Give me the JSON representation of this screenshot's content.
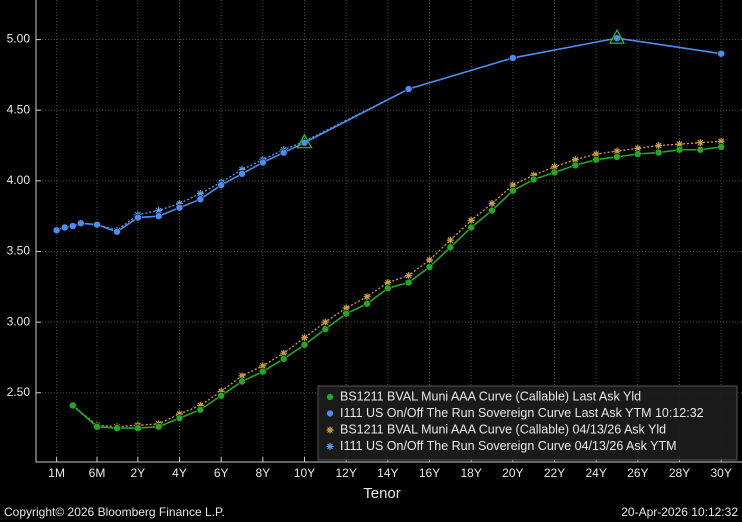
{
  "chart_data": {
    "type": "line",
    "x_label": "Tenor",
    "copyright": "Copyright© 2026 Bloomberg Finance L.P.",
    "timestamp": "20-Apr-2026 10:12:32",
    "xlim": [
      -0.13,
      31
    ],
    "xticks": [
      {
        "value": 0.083,
        "label": "1M"
      },
      {
        "value": 0.5,
        "label": "6M"
      },
      {
        "value": 2,
        "label": "2Y"
      },
      {
        "value": 4,
        "label": "4Y"
      },
      {
        "value": 6,
        "label": "6Y"
      },
      {
        "value": 8,
        "label": "8Y"
      },
      {
        "value": 10,
        "label": "10Y"
      },
      {
        "value": 12,
        "label": "12Y"
      },
      {
        "value": 14,
        "label": "14Y"
      },
      {
        "value": 16,
        "label": "16Y"
      },
      {
        "value": 18,
        "label": "18Y"
      },
      {
        "value": 20,
        "label": "20Y"
      },
      {
        "value": 22,
        "label": "22Y"
      },
      {
        "value": 24,
        "label": "24Y"
      },
      {
        "value": 26,
        "label": "26Y"
      },
      {
        "value": 28,
        "label": "28Y"
      },
      {
        "value": 30,
        "label": "30Y"
      }
    ],
    "ylim": [
      2.01,
      5.28
    ],
    "yticks": [
      {
        "value": 2.5,
        "label": "2.50"
      },
      {
        "value": 3,
        "label": "3.00"
      },
      {
        "value": 3.5,
        "label": "3.50"
      },
      {
        "value": 4,
        "label": "4.00"
      },
      {
        "value": 4.5,
        "label": "4.50"
      },
      {
        "value": 5,
        "label": "5.00"
      }
    ],
    "grid": true,
    "legend": "lower-right",
    "series": [
      {
        "name": "BS1211 BVAL Muni AAA Curve (Callable) Last Ask Yld",
        "color": "#22a822",
        "marker": "circle",
        "dotted": false,
        "x": [
          0.25,
          0.5,
          1,
          2,
          3,
          4,
          5,
          6,
          7,
          8,
          9,
          10,
          11,
          12,
          13,
          14,
          15,
          16,
          17,
          18,
          19,
          20,
          21,
          22,
          23,
          24,
          25,
          26,
          27,
          28,
          29,
          30
        ],
        "values": [
          2.41,
          2.26,
          2.25,
          2.25,
          2.26,
          2.32,
          2.38,
          2.48,
          2.58,
          2.65,
          2.74,
          2.84,
          2.95,
          3.06,
          3.13,
          3.24,
          3.28,
          3.39,
          3.53,
          3.67,
          3.79,
          3.93,
          4.01,
          4.06,
          4.11,
          4.15,
          4.17,
          4.19,
          4.2,
          4.22,
          4.22,
          4.24
        ]
      },
      {
        "name": "I111 US On/Off The Run Sovereign Curve Last Ask YTM 10:12:32",
        "color": "#4a8ff0",
        "marker": "circle",
        "dotted": false,
        "x": [
          0.083,
          0.167,
          0.25,
          0.333,
          0.5,
          1,
          2,
          3,
          4,
          5,
          6,
          7,
          8,
          9,
          10,
          15,
          20,
          25,
          30
        ],
        "values": [
          3.65,
          3.67,
          3.68,
          3.7,
          3.69,
          3.64,
          3.74,
          3.75,
          3.81,
          3.87,
          3.97,
          4.05,
          4.13,
          4.2,
          4.27,
          4.65,
          4.87,
          5.01,
          4.9
        ],
        "highlight_x": [
          10,
          25
        ],
        "highlight_color": "#22c822"
      },
      {
        "name": "BS1211 BVAL Muni AAA Curve (Callable) 04/13/26 Ask Yld",
        "color": "#c9a23a",
        "marker": "star",
        "dotted": true,
        "x": [
          0.25,
          0.5,
          1,
          2,
          3,
          4,
          5,
          6,
          7,
          8,
          9,
          10,
          11,
          12,
          13,
          14,
          15,
          16,
          17,
          18,
          19,
          20,
          21,
          22,
          23,
          24,
          25,
          26,
          27,
          28,
          29,
          30
        ],
        "values": [
          2.41,
          2.27,
          2.26,
          2.27,
          2.28,
          2.35,
          2.41,
          2.51,
          2.62,
          2.69,
          2.78,
          2.89,
          3.0,
          3.1,
          3.18,
          3.28,
          3.33,
          3.44,
          3.58,
          3.72,
          3.84,
          3.97,
          4.04,
          4.1,
          4.15,
          4.19,
          4.21,
          4.23,
          4.25,
          4.26,
          4.27,
          4.28
        ]
      },
      {
        "name": "I111 US On/Off The Run Sovereign Curve 04/13/26 Ask YTM",
        "color": "#5a9cf5",
        "marker": "star",
        "dotted": true,
        "x": [
          0.083,
          0.167,
          0.25,
          0.333,
          0.5,
          1,
          2,
          3,
          4,
          5,
          6,
          7,
          8,
          9,
          10,
          15,
          20,
          25,
          30
        ],
        "values": [
          3.65,
          3.67,
          3.68,
          3.7,
          3.69,
          3.65,
          3.76,
          3.79,
          3.84,
          3.91,
          3.99,
          4.08,
          4.15,
          4.22,
          4.28,
          4.65,
          4.87,
          5.01,
          4.9
        ]
      }
    ]
  }
}
